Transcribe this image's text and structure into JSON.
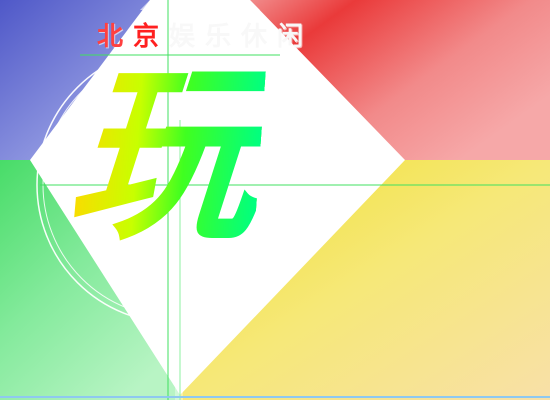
{
  "title": {
    "chars": [
      {
        "text": "北",
        "color": "#ff4040"
      },
      {
        "text": "京",
        "color": "#ff2020"
      },
      {
        "text": "娱",
        "color": "#f8f8f8"
      },
      {
        "text": "乐",
        "color": "#f8f8f8"
      },
      {
        "text": "休",
        "color": "#f8f8f8"
      },
      {
        "text": "闲",
        "color": "#f8f8f8"
      }
    ]
  },
  "center_glyph": "玩",
  "colors": {
    "blue": "#5a64d2",
    "red": "#ee4a4a",
    "green": "#5ee07a",
    "yellow": "#f0e040",
    "guide": "#40e060",
    "circle": "#ffffff"
  }
}
